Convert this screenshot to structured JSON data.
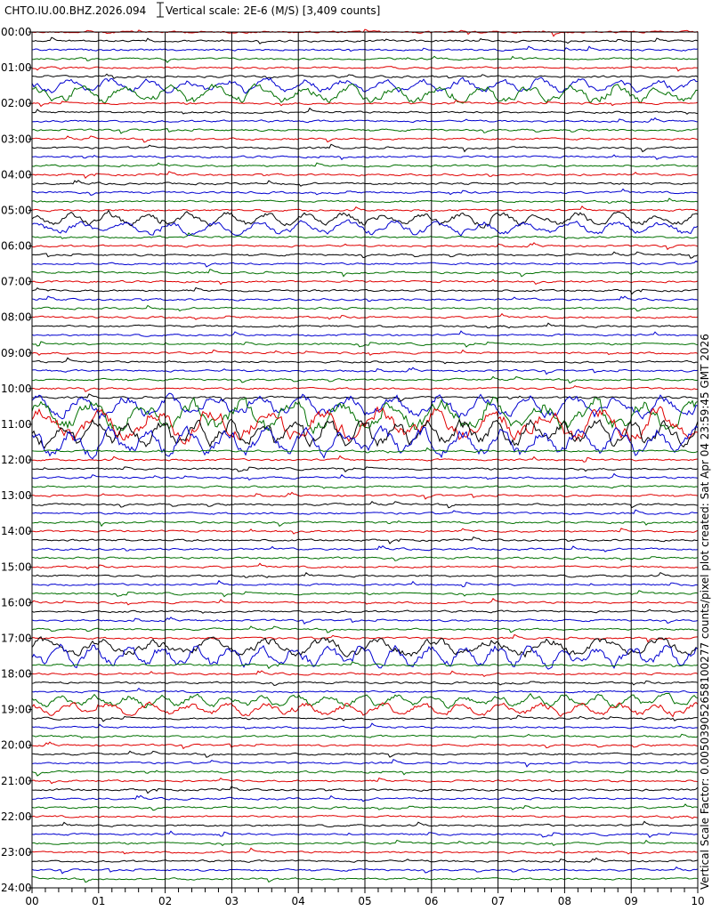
{
  "header": {
    "station": "CHTO.IU.00.BHZ.2026.094",
    "scale": "Vertical scale: 2E-6 (M/S) [3,409 counts]"
  },
  "hour_labels": [
    "00:00",
    "01:00",
    "02:00",
    "03:00",
    "04:00",
    "05:00",
    "06:00",
    "07:00",
    "08:00",
    "09:00",
    "10:00",
    "11:00",
    "12:00",
    "13:00",
    "14:00",
    "15:00",
    "16:00",
    "17:00",
    "18:00",
    "19:00",
    "20:00",
    "21:00",
    "22:00",
    "23:00",
    "24:00"
  ],
  "minute_labels": [
    "00",
    "01",
    "02",
    "03",
    "04",
    "05",
    "06",
    "07",
    "08",
    "09",
    "10"
  ],
  "side_note": "Vertical Scale Factor: 0.005039052658100277 counts/pixel plot created: Sat Apr 04 23:59:45 GMT 2026"
}
